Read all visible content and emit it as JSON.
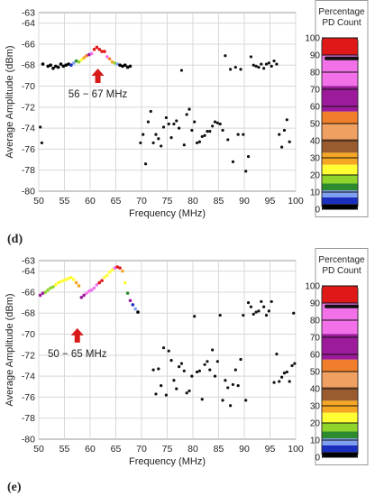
{
  "colors": {
    "arrow": "#d91a1a",
    "points": "#111111",
    "colorbar": [
      "#000000",
      "#1a2fbf",
      "#7f9ff0",
      "#2e8a2e",
      "#8fd42a",
      "#ffff33",
      "#f5a623",
      "#9a5b2e",
      "#f0a060",
      "#f07e2a",
      "#9b1b9b",
      "#f270e8",
      "#e01818"
    ]
  },
  "chart_data": [
    {
      "type": "scatter",
      "panel_label": "(d)",
      "xlabel": "Frequency (MHz)",
      "ylabel": "Average Amplitude (dBm)",
      "xlim": [
        50,
        100
      ],
      "ylim": [
        -80,
        -63
      ],
      "x_ticks": [
        "50",
        "55",
        "60",
        "65",
        "70",
        "75",
        "80",
        "85",
        "90",
        "95",
        "100"
      ],
      "y_ticks": [
        "-80",
        "-78",
        "-76",
        "-74",
        "-72",
        "-70",
        "-68",
        "-66",
        "-64",
        "-63"
      ],
      "grid": true,
      "annotation": "56 − 67 MHz",
      "arrow_at": {
        "x": 61.5,
        "y": -68.5
      },
      "colorbar": {
        "title": "Percentage PD Count",
        "ticks": [
          "0",
          "10",
          "20",
          "30",
          "40",
          "50",
          "60",
          "70",
          "80",
          "90",
          "100"
        ],
        "marker_value": 88
      },
      "colored_points": [
        {
          "x": 50.8,
          "y": -67.9,
          "color": "#000000"
        },
        {
          "x": 51.8,
          "y": -68.1,
          "color": "#000000"
        },
        {
          "x": 52.3,
          "y": -68.0,
          "color": "#000000"
        },
        {
          "x": 52.8,
          "y": -68.3,
          "color": "#000000"
        },
        {
          "x": 53.3,
          "y": -68.1,
          "color": "#000000"
        },
        {
          "x": 53.8,
          "y": -68.2,
          "color": "#000000"
        },
        {
          "x": 54.3,
          "y": -67.9,
          "color": "#000000"
        },
        {
          "x": 54.8,
          "y": -68.1,
          "color": "#000000"
        },
        {
          "x": 55.3,
          "y": -68.0,
          "color": "#000000"
        },
        {
          "x": 55.8,
          "y": -67.9,
          "color": "#000000"
        },
        {
          "x": 56.3,
          "y": -68.0,
          "color": "#1a2fbf"
        },
        {
          "x": 56.8,
          "y": -67.8,
          "color": "#7f9ff0"
        },
        {
          "x": 57.3,
          "y": -67.6,
          "color": "#2e8a2e"
        },
        {
          "x": 57.8,
          "y": -67.7,
          "color": "#8fd42a"
        },
        {
          "x": 58.3,
          "y": -67.5,
          "color": "#ffff33"
        },
        {
          "x": 58.8,
          "y": -67.3,
          "color": "#f5a623"
        },
        {
          "x": 59.3,
          "y": -67.1,
          "color": "#f07e2a"
        },
        {
          "x": 59.8,
          "y": -67.0,
          "color": "#9b1b9b"
        },
        {
          "x": 60.3,
          "y": -66.9,
          "color": "#f270e8"
        },
        {
          "x": 60.8,
          "y": -66.5,
          "color": "#e01818"
        },
        {
          "x": 61.3,
          "y": -66.3,
          "color": "#e01818"
        },
        {
          "x": 61.8,
          "y": -66.5,
          "color": "#e01818"
        },
        {
          "x": 62.3,
          "y": -66.7,
          "color": "#e01818"
        },
        {
          "x": 62.8,
          "y": -66.7,
          "color": "#e01818"
        },
        {
          "x": 63.3,
          "y": -67.2,
          "color": "#f270e8"
        },
        {
          "x": 63.8,
          "y": -67.4,
          "color": "#f07e2a"
        },
        {
          "x": 64.3,
          "y": -67.7,
          "color": "#f5a623"
        },
        {
          "x": 64.8,
          "y": -67.8,
          "color": "#8fd42a"
        },
        {
          "x": 65.3,
          "y": -67.9,
          "color": "#7f9ff0"
        },
        {
          "x": 65.8,
          "y": -68.0,
          "color": "#000000"
        },
        {
          "x": 66.3,
          "y": -68.1,
          "color": "#000000"
        },
        {
          "x": 66.8,
          "y": -68.0,
          "color": "#000000"
        },
        {
          "x": 67.3,
          "y": -68.2,
          "color": "#000000"
        },
        {
          "x": 67.8,
          "y": -68.1,
          "color": "#000000"
        }
      ],
      "black_points": [
        {
          "x": 50.3,
          "y": -73.9
        },
        {
          "x": 50.6,
          "y": -75.4
        },
        {
          "x": 69.8,
          "y": -75.4
        },
        {
          "x": 70.3,
          "y": -74.6
        },
        {
          "x": 70.8,
          "y": -77.4
        },
        {
          "x": 71.3,
          "y": -73.4
        },
        {
          "x": 71.8,
          "y": -72.4
        },
        {
          "x": 72.3,
          "y": -75.4
        },
        {
          "x": 72.8,
          "y": -74.6
        },
        {
          "x": 73.3,
          "y": -75.0
        },
        {
          "x": 73.8,
          "y": -75.7
        },
        {
          "x": 74.3,
          "y": -73.9
        },
        {
          "x": 74.8,
          "y": -73.0
        },
        {
          "x": 75.3,
          "y": -73.6
        },
        {
          "x": 75.8,
          "y": -74.9
        },
        {
          "x": 76.3,
          "y": -73.6
        },
        {
          "x": 76.8,
          "y": -73.3
        },
        {
          "x": 77.3,
          "y": -74.0
        },
        {
          "x": 77.8,
          "y": -68.5
        },
        {
          "x": 78.3,
          "y": -75.6
        },
        {
          "x": 78.8,
          "y": -72.7
        },
        {
          "x": 79.3,
          "y": -72.2
        },
        {
          "x": 79.8,
          "y": -74.2
        },
        {
          "x": 80.3,
          "y": -73.4
        },
        {
          "x": 80.8,
          "y": -75.4
        },
        {
          "x": 81.3,
          "y": -75.3
        },
        {
          "x": 81.8,
          "y": -74.8
        },
        {
          "x": 82.3,
          "y": -74.7
        },
        {
          "x": 82.8,
          "y": -74.3
        },
        {
          "x": 83.3,
          "y": -74.3
        },
        {
          "x": 83.8,
          "y": -73.8
        },
        {
          "x": 84.3,
          "y": -73.4
        },
        {
          "x": 84.8,
          "y": -73.5
        },
        {
          "x": 85.3,
          "y": -73.6
        },
        {
          "x": 85.8,
          "y": -74.2
        },
        {
          "x": 86.3,
          "y": -67.1
        },
        {
          "x": 86.8,
          "y": -75.1
        },
        {
          "x": 87.3,
          "y": -68.4
        },
        {
          "x": 87.8,
          "y": -77.2
        },
        {
          "x": 88.3,
          "y": -68.2
        },
        {
          "x": 88.8,
          "y": -74.6
        },
        {
          "x": 89.3,
          "y": -68.4
        },
        {
          "x": 89.8,
          "y": -74.6
        },
        {
          "x": 90.3,
          "y": -78.1
        },
        {
          "x": 90.8,
          "y": -76.7
        },
        {
          "x": 91.3,
          "y": -67.2
        },
        {
          "x": 91.8,
          "y": -68.0
        },
        {
          "x": 92.3,
          "y": -68.1
        },
        {
          "x": 92.8,
          "y": -68.2
        },
        {
          "x": 93.3,
          "y": -67.9
        },
        {
          "x": 93.8,
          "y": -68.3
        },
        {
          "x": 94.3,
          "y": -67.9
        },
        {
          "x": 94.8,
          "y": -67.8
        },
        {
          "x": 95.3,
          "y": -68.1
        },
        {
          "x": 95.8,
          "y": -67.6
        },
        {
          "x": 96.3,
          "y": -67.9
        },
        {
          "x": 96.8,
          "y": -74.6
        },
        {
          "x": 97.3,
          "y": -75.8
        },
        {
          "x": 97.8,
          "y": -74.2
        },
        {
          "x": 98.3,
          "y": -73.2
        },
        {
          "x": 98.8,
          "y": -75.3
        }
      ]
    },
    {
      "type": "scatter",
      "panel_label": "(e)",
      "xlabel": "Frequency (MHz)",
      "ylabel": "Average Amplitude (dBm)",
      "xlim": [
        50,
        100
      ],
      "ylim": [
        -80,
        -63
      ],
      "x_ticks": [
        "50",
        "55",
        "60",
        "65",
        "70",
        "75",
        "80",
        "85",
        "90",
        "95",
        "100"
      ],
      "y_ticks": [
        "-80",
        "-78",
        "-76",
        "-74",
        "-72",
        "-70",
        "-68",
        "-66",
        "-64",
        "-63"
      ],
      "grid": true,
      "annotation": "50 − 65 MHz",
      "arrow_at": {
        "x": 57.5,
        "y": -69.6
      },
      "colorbar": {
        "title": "Percentage PD Count",
        "ticks": [
          "0",
          "10",
          "20",
          "30",
          "40",
          "50",
          "60",
          "70",
          "80",
          "90",
          "100"
        ],
        "marker_value": 88
      },
      "colored_points": [
        {
          "x": 50.3,
          "y": -66.3,
          "color": "#9b1b9b"
        },
        {
          "x": 50.8,
          "y": -66.1,
          "color": "#9b1b9b"
        },
        {
          "x": 51.3,
          "y": -66.0,
          "color": "#8fd42a"
        },
        {
          "x": 51.8,
          "y": -65.8,
          "color": "#8fd42a"
        },
        {
          "x": 52.3,
          "y": -65.6,
          "color": "#8fd42a"
        },
        {
          "x": 52.8,
          "y": -65.5,
          "color": "#8fd42a"
        },
        {
          "x": 53.3,
          "y": -65.3,
          "color": "#ffff33"
        },
        {
          "x": 53.8,
          "y": -65.1,
          "color": "#ffff33"
        },
        {
          "x": 54.3,
          "y": -65.0,
          "color": "#ffff33"
        },
        {
          "x": 54.8,
          "y": -64.9,
          "color": "#ffff33"
        },
        {
          "x": 55.3,
          "y": -64.8,
          "color": "#ffff33"
        },
        {
          "x": 55.8,
          "y": -64.7,
          "color": "#ffff33"
        },
        {
          "x": 56.3,
          "y": -64.6,
          "color": "#ffff33"
        },
        {
          "x": 56.8,
          "y": -64.8,
          "color": "#ffff33"
        },
        {
          "x": 57.3,
          "y": -65.1,
          "color": "#f5a623"
        },
        {
          "x": 57.8,
          "y": -65.4,
          "color": "#f5a623"
        },
        {
          "x": 58.3,
          "y": -66.5,
          "color": "#9b1b9b"
        },
        {
          "x": 58.8,
          "y": -66.3,
          "color": "#9b1b9b"
        },
        {
          "x": 59.3,
          "y": -66.1,
          "color": "#f270e8"
        },
        {
          "x": 59.8,
          "y": -65.9,
          "color": "#f270e8"
        },
        {
          "x": 60.3,
          "y": -65.8,
          "color": "#f270e8"
        },
        {
          "x": 60.8,
          "y": -65.6,
          "color": "#f270e8"
        },
        {
          "x": 61.3,
          "y": -65.3,
          "color": "#f270e8"
        },
        {
          "x": 61.8,
          "y": -65.1,
          "color": "#e01818"
        },
        {
          "x": 62.3,
          "y": -64.9,
          "color": "#e01818"
        },
        {
          "x": 62.8,
          "y": -64.6,
          "color": "#ffff33"
        },
        {
          "x": 63.3,
          "y": -64.4,
          "color": "#ffff33"
        },
        {
          "x": 63.8,
          "y": -64.1,
          "color": "#ffff33"
        },
        {
          "x": 64.3,
          "y": -63.9,
          "color": "#ffff33"
        },
        {
          "x": 64.8,
          "y": -63.7,
          "color": "#f270e8"
        },
        {
          "x": 65.3,
          "y": -63.6,
          "color": "#e01818"
        },
        {
          "x": 65.8,
          "y": -63.7,
          "color": "#e01818"
        },
        {
          "x": 66.3,
          "y": -64.0,
          "color": "#f5a623"
        },
        {
          "x": 66.8,
          "y": -65.1,
          "color": "#ffff33"
        },
        {
          "x": 67.3,
          "y": -66.1,
          "color": "#2e8a2e"
        },
        {
          "x": 67.8,
          "y": -66.8,
          "color": "#9b1b9b"
        },
        {
          "x": 68.3,
          "y": -67.2,
          "color": "#1a2fbf"
        },
        {
          "x": 68.8,
          "y": -67.6,
          "color": "#7f9ff0"
        },
        {
          "x": 69.3,
          "y": -67.9,
          "color": "#000000"
        }
      ],
      "black_points": [
        {
          "x": 72.3,
          "y": -73.4
        },
        {
          "x": 72.8,
          "y": -75.7
        },
        {
          "x": 73.3,
          "y": -73.3
        },
        {
          "x": 73.8,
          "y": -74.9
        },
        {
          "x": 74.3,
          "y": -71.3
        },
        {
          "x": 74.8,
          "y": -75.8
        },
        {
          "x": 75.3,
          "y": -71.6
        },
        {
          "x": 75.8,
          "y": -72.5
        },
        {
          "x": 76.3,
          "y": -74.4
        },
        {
          "x": 76.8,
          "y": -75.2
        },
        {
          "x": 77.3,
          "y": -73.1
        },
        {
          "x": 77.8,
          "y": -72.8
        },
        {
          "x": 78.3,
          "y": -73.5
        },
        {
          "x": 78.8,
          "y": -75.6
        },
        {
          "x": 79.3,
          "y": -75.4
        },
        {
          "x": 79.8,
          "y": -74.0
        },
        {
          "x": 80.3,
          "y": -68.3
        },
        {
          "x": 80.8,
          "y": -73.6
        },
        {
          "x": 81.3,
          "y": -73.5
        },
        {
          "x": 81.8,
          "y": -76.2
        },
        {
          "x": 82.3,
          "y": -72.9
        },
        {
          "x": 82.8,
          "y": -72.6
        },
        {
          "x": 83.3,
          "y": -73.4
        },
        {
          "x": 83.8,
          "y": -71.5
        },
        {
          "x": 84.3,
          "y": -74.0
        },
        {
          "x": 84.8,
          "y": -72.6
        },
        {
          "x": 85.3,
          "y": -68.2
        },
        {
          "x": 85.8,
          "y": -76.3
        },
        {
          "x": 86.3,
          "y": -74.4
        },
        {
          "x": 86.8,
          "y": -75.1
        },
        {
          "x": 87.3,
          "y": -76.8
        },
        {
          "x": 87.8,
          "y": -74.8
        },
        {
          "x": 88.3,
          "y": -73.4
        },
        {
          "x": 88.8,
          "y": -74.9
        },
        {
          "x": 89.3,
          "y": -72.4
        },
        {
          "x": 89.8,
          "y": -68.2
        },
        {
          "x": 90.3,
          "y": -76.3
        },
        {
          "x": 90.8,
          "y": -67.0
        },
        {
          "x": 91.3,
          "y": -67.4
        },
        {
          "x": 91.8,
          "y": -68.1
        },
        {
          "x": 92.3,
          "y": -67.9
        },
        {
          "x": 92.8,
          "y": -67.8
        },
        {
          "x": 93.3,
          "y": -66.9
        },
        {
          "x": 93.8,
          "y": -67.4
        },
        {
          "x": 94.3,
          "y": -68.2
        },
        {
          "x": 94.8,
          "y": -67.8
        },
        {
          "x": 95.3,
          "y": -66.9
        },
        {
          "x": 95.8,
          "y": -74.6
        },
        {
          "x": 96.3,
          "y": -71.9
        },
        {
          "x": 96.8,
          "y": -74.5
        },
        {
          "x": 97.3,
          "y": -74.1
        },
        {
          "x": 97.8,
          "y": -73.7
        },
        {
          "x": 98.3,
          "y": -73.6
        },
        {
          "x": 98.8,
          "y": -74.5
        },
        {
          "x": 99.3,
          "y": -73.0
        },
        {
          "x": 99.8,
          "y": -72.8
        },
        {
          "x": 99.6,
          "y": -68.0
        }
      ]
    }
  ]
}
